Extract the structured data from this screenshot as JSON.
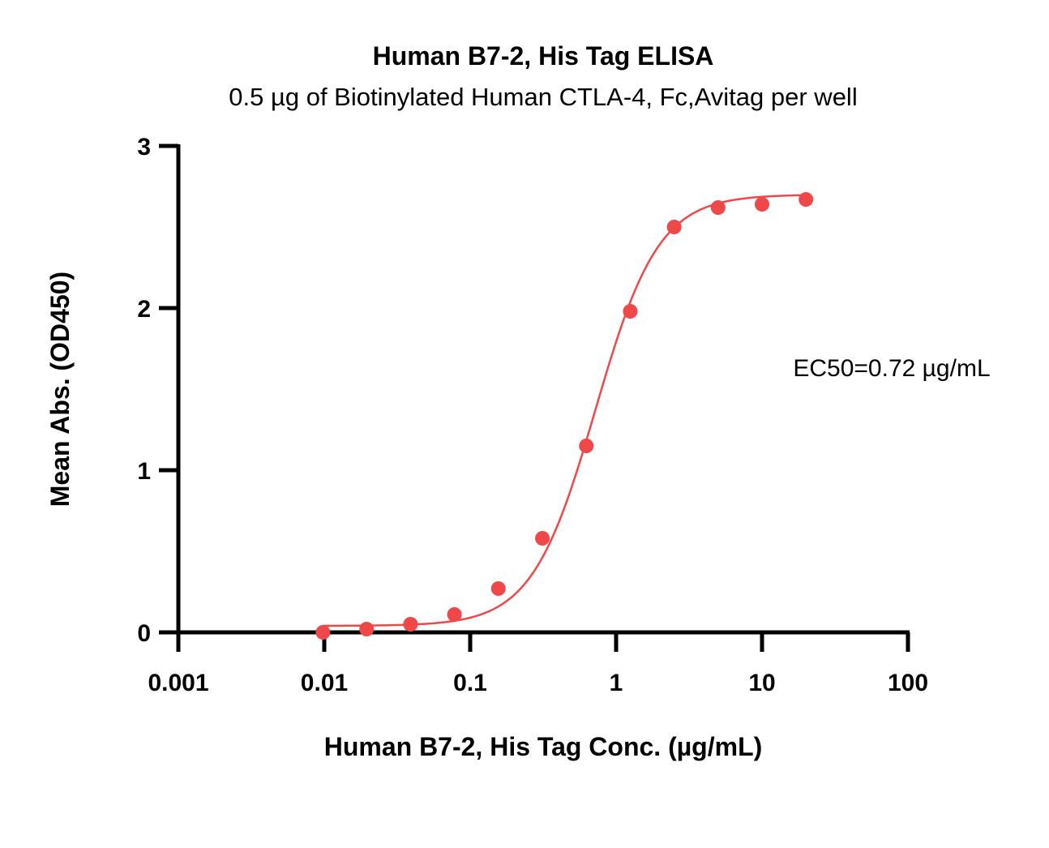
{
  "chart_data": {
    "type": "scatter",
    "title": "Human B7-2, His Tag ELISA",
    "subtitle": "0.5 µg of Biotinylated Human CTLA-4, Fc,Avitag per well",
    "xlabel": "Human B7-2, His Tag Conc. (µg/mL)",
    "ylabel": "Mean Abs. (OD450)",
    "x_scale": "log",
    "xlim": [
      0.001,
      100
    ],
    "ylim": [
      0,
      3
    ],
    "x_ticks": [
      0.001,
      0.01,
      0.1,
      1,
      10,
      100
    ],
    "x_tick_labels": [
      "0.001",
      "0.01",
      "0.1",
      "1",
      "10",
      "100"
    ],
    "y_ticks": [
      0,
      1,
      2,
      3
    ],
    "y_tick_labels": [
      "0",
      "1",
      "2",
      "3"
    ],
    "grid": false,
    "color": "#f04848",
    "series": [
      {
        "x": [
          0.0098,
          0.0195,
          0.039,
          0.078,
          0.156,
          0.3125,
          0.625,
          1.25,
          2.5,
          5,
          10,
          20
        ],
        "y": [
          0.0,
          0.02,
          0.05,
          0.11,
          0.27,
          0.58,
          1.15,
          1.98,
          2.5,
          2.62,
          2.64,
          2.67
        ],
        "fit": "4PL",
        "fit_params": {
          "bottom": 0.04,
          "top": 2.7,
          "ec50": 0.72,
          "hill": 2.0
        }
      }
    ],
    "annotation": "EC50=0.72 µg/mL"
  }
}
